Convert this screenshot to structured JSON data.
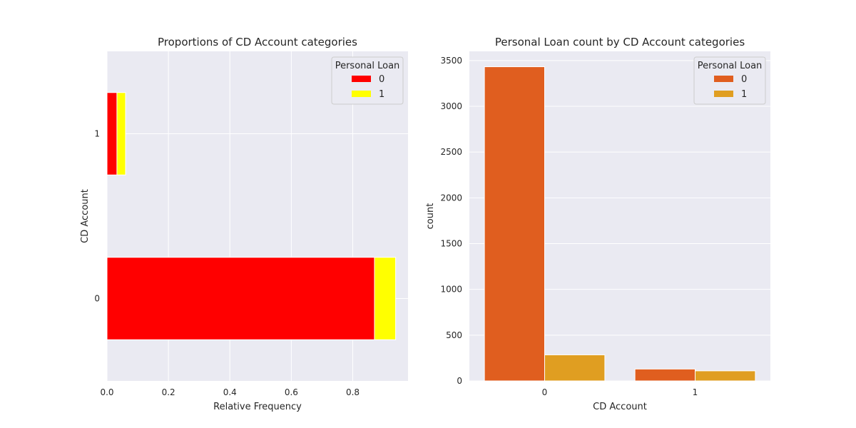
{
  "chart_data": [
    {
      "type": "bar",
      "orientation": "horizontal",
      "stacked": true,
      "title": "Proportions of CD Account categories",
      "xlabel": "Relative Frequency",
      "ylabel": "CD Account",
      "categories": [
        "0",
        "1"
      ],
      "series": [
        {
          "name": "0",
          "values": [
            0.8708,
            0.0324
          ],
          "color": "#ff0000"
        },
        {
          "name": "1",
          "values": [
            0.0688,
            0.028
          ],
          "color": "#ffff00"
        }
      ],
      "xlim": [
        0,
        0.98
      ],
      "xticks": [
        "0.0",
        "0.2",
        "0.4",
        "0.6",
        "0.8"
      ],
      "xtick_values": [
        0,
        0.2,
        0.4,
        0.6,
        0.8
      ],
      "legend": {
        "title": "Personal Loan",
        "placement": "top-right",
        "entries": [
          "0",
          "1"
        ]
      },
      "grid": true
    },
    {
      "type": "bar",
      "orientation": "vertical",
      "stacked": false,
      "title": "Personal Loan count by CD Account categories",
      "xlabel": "CD Account",
      "ylabel": "count",
      "categories": [
        "0",
        "1"
      ],
      "series": [
        {
          "name": "0",
          "values": [
            3432,
            130
          ],
          "color": "#e05e1f"
        },
        {
          "name": "1",
          "values": [
            285,
            110
          ],
          "color": "#e09e21"
        }
      ],
      "ylim": [
        0,
        3600
      ],
      "yticks": [
        "0",
        "500",
        "1000",
        "1500",
        "2000",
        "2500",
        "3000",
        "3500"
      ],
      "ytick_values": [
        0,
        500,
        1000,
        1500,
        2000,
        2500,
        3000,
        3500
      ],
      "legend": {
        "title": "Personal Loan",
        "placement": "top-right",
        "entries": [
          "0",
          "1"
        ]
      },
      "grid": true
    }
  ]
}
